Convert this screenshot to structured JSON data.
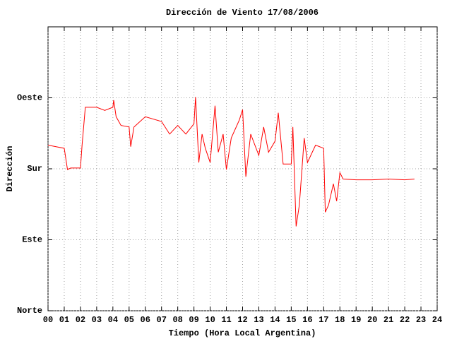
{
  "chart_data": {
    "type": "line",
    "title": "Dirección de Viento 17/08/2006",
    "x_label": "Tiempo (Hora Local Argentina)",
    "y_label": "Dirección",
    "x": [
      0.0,
      0.5,
      1.0,
      1.2,
      1.4,
      2.0,
      2.1,
      2.3,
      3.0,
      3.5,
      4.0,
      4.05,
      4.2,
      4.5,
      5.0,
      5.1,
      5.3,
      6.0,
      7.0,
      7.5,
      8.0,
      8.5,
      9.0,
      9.1,
      9.3,
      9.5,
      9.7,
      10.0,
      10.3,
      10.5,
      10.8,
      11.0,
      11.3,
      11.8,
      12.0,
      12.2,
      12.5,
      13.0,
      13.3,
      13.6,
      14.0,
      14.2,
      14.5,
      15.0,
      15.1,
      15.3,
      15.5,
      15.8,
      16.0,
      16.5,
      17.0,
      17.1,
      17.3,
      17.6,
      17.8,
      18.0,
      18.2,
      19.0,
      20.0,
      21.0,
      22.0,
      22.6
    ],
    "values": [
      210,
      208,
      206,
      179,
      181,
      181,
      210,
      258,
      258,
      254,
      258,
      267,
      246,
      235,
      233,
      208,
      233,
      246,
      240,
      224,
      235,
      224,
      237,
      271,
      188,
      224,
      206,
      188,
      260,
      201,
      224,
      179,
      219,
      242,
      255,
      170,
      224,
      197,
      233,
      201,
      215,
      251,
      186,
      186,
      233,
      107,
      134,
      219,
      188,
      210,
      206,
      125,
      134,
      161,
      139,
      175,
      167,
      166,
      166,
      167,
      166,
      167
    ],
    "color": "#ff0000",
    "xlim": [
      0,
      24
    ],
    "xticks": [
      {
        "value": 0,
        "label": "00"
      },
      {
        "value": 1,
        "label": "01"
      },
      {
        "value": 2,
        "label": "02"
      },
      {
        "value": 3,
        "label": "03"
      },
      {
        "value": 4,
        "label": "04"
      },
      {
        "value": 5,
        "label": "05"
      },
      {
        "value": 6,
        "label": "06"
      },
      {
        "value": 7,
        "label": "07"
      },
      {
        "value": 8,
        "label": "08"
      },
      {
        "value": 9,
        "label": "09"
      },
      10,
      11,
      12,
      13,
      14,
      15,
      16,
      17,
      18,
      19,
      20,
      21,
      22,
      23,
      24
    ],
    "ylim": [
      0,
      360
    ],
    "yticks": [
      {
        "value": 0,
        "label": "Norte"
      },
      {
        "value": 90,
        "label": "Este"
      },
      {
        "value": 180,
        "label": "Sur"
      },
      {
        "value": 270,
        "label": "Oeste"
      }
    ],
    "grid": true
  }
}
